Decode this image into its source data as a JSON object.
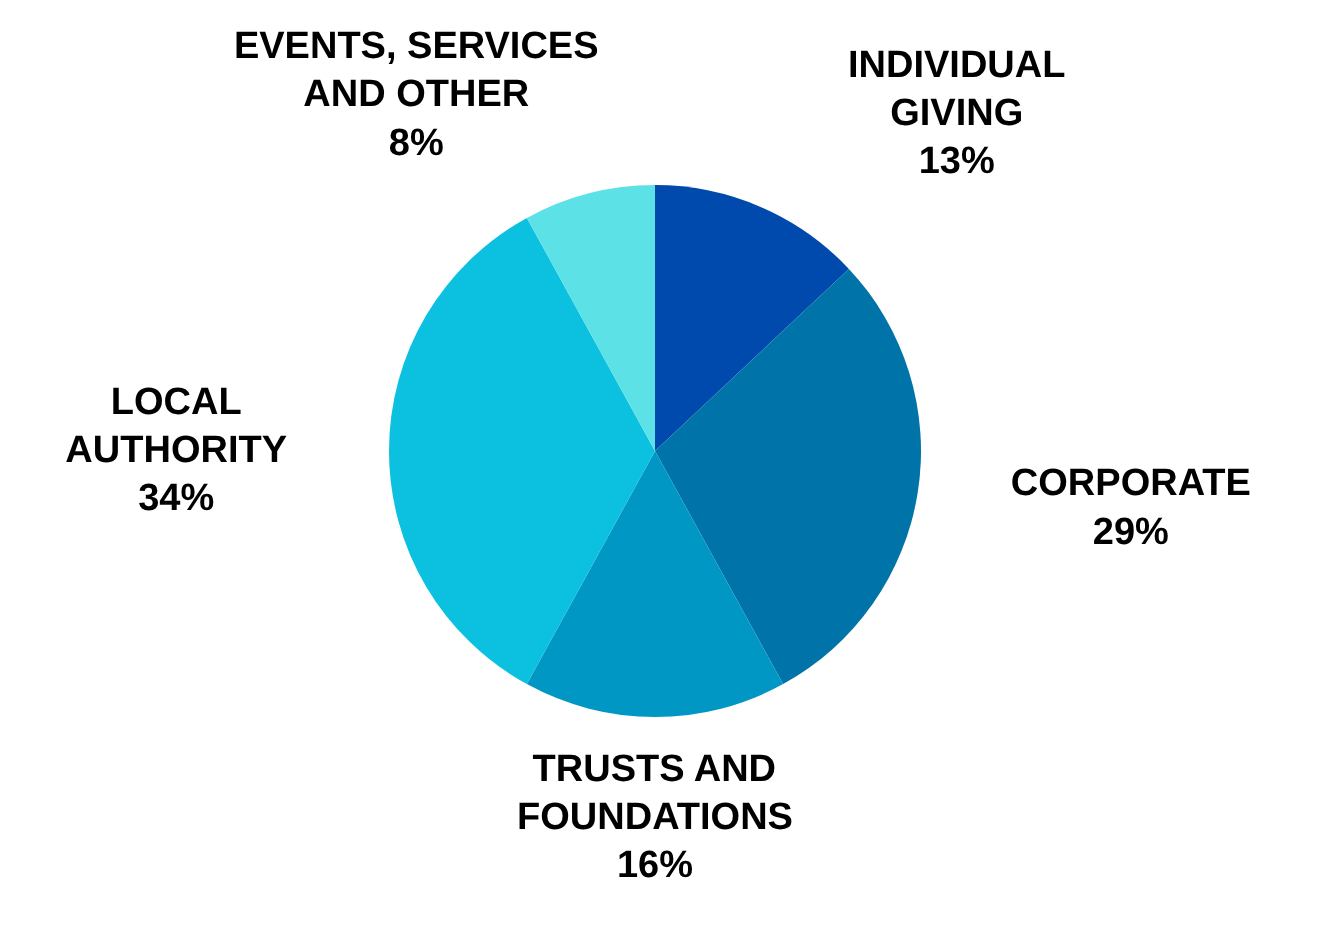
{
  "chart_data": {
    "type": "pie",
    "categories": [
      "INDIVIDUAL\nGIVING",
      "CORPORATE",
      "TRUSTS AND\nFOUNDATIONS",
      "LOCAL\nAUTHORITY",
      "EVENTS, SERVICES\nAND OTHER"
    ],
    "values": [
      13,
      29,
      16,
      34,
      8
    ],
    "colors": [
      "#004aad",
      "#0073a8",
      "#0097c4",
      "#0cc0df",
      "#5ce1e6"
    ],
    "value_labels": [
      "13%",
      "29%",
      "16%",
      "34%",
      "8%"
    ]
  }
}
